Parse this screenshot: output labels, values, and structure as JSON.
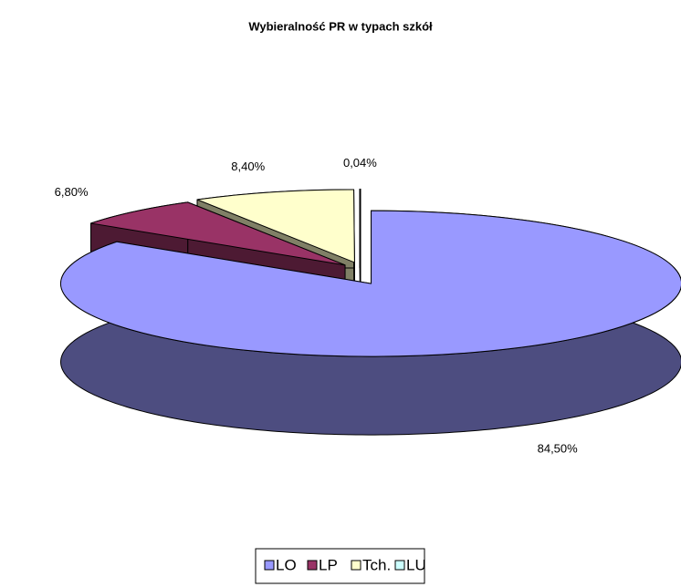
{
  "chart_data": {
    "type": "pie",
    "title": "Wybieralność PR w typach szkół",
    "categories": [
      "LO",
      "LP",
      "Tch.",
      "LU"
    ],
    "values": [
      84.5,
      6.8,
      8.4,
      0.04
    ],
    "value_labels": [
      "84,50%",
      "6,80%",
      "8,40%",
      "0,04%"
    ],
    "colors": [
      "#9999ff",
      "#993366",
      "#ffffcc",
      "#ccffff"
    ],
    "legend": "bottom"
  }
}
